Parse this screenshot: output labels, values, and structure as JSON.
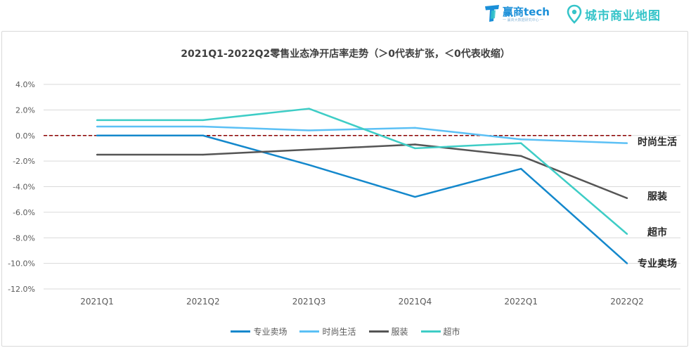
{
  "header": {
    "tech_brand": "赢商tech",
    "tech_sub": "一 赢商大数据研究中心 一",
    "map_brand": "城市商业地图",
    "colors": {
      "tech": "#1a8fd8",
      "map": "#35c4c9"
    },
    "icons": [
      "tech-logo-icon",
      "location-pin-icon"
    ]
  },
  "chart_data": {
    "type": "line",
    "title": "2021Q1-2022Q2零售业态净开店率走势（＞0代表扩张，＜0代表收缩）",
    "categories": [
      "2021Q1",
      "2021Q2",
      "2021Q3",
      "2021Q4",
      "2022Q1",
      "2022Q2"
    ],
    "ylim": [
      -12,
      4
    ],
    "yticks": [
      4,
      2,
      0,
      -2,
      -4,
      -6,
      -8,
      -10,
      -12
    ],
    "ytick_labels": [
      "4.0%",
      "2.0%",
      "0.0%",
      "-2.0%",
      "-4.0%",
      "-6.0%",
      "-8.0%",
      "-10.0%",
      "-12.0%"
    ],
    "grid": true,
    "reference_line": {
      "y": 0,
      "style": "dashed",
      "color": "#8b0000"
    },
    "legend_position": "bottom",
    "series": [
      {
        "name": "专业卖场",
        "end_label": "专业卖场",
        "color": "#1488cc",
        "values": [
          0.0,
          0.0,
          -2.3,
          -4.8,
          -2.6,
          -10.0
        ]
      },
      {
        "name": "时尚生活",
        "end_label": "时尚生活",
        "color": "#5bc0f5",
        "values": [
          0.7,
          0.7,
          0.4,
          0.6,
          -0.3,
          -0.6
        ]
      },
      {
        "name": "服装",
        "end_label": "服装",
        "color": "#555555",
        "values": [
          -1.5,
          -1.5,
          -1.1,
          -0.7,
          -1.6,
          -4.9
        ]
      },
      {
        "name": "超市",
        "end_label": "超市",
        "color": "#3ecdc6",
        "values": [
          1.2,
          1.2,
          2.1,
          -1.0,
          -0.6,
          -7.7
        ]
      }
    ]
  }
}
